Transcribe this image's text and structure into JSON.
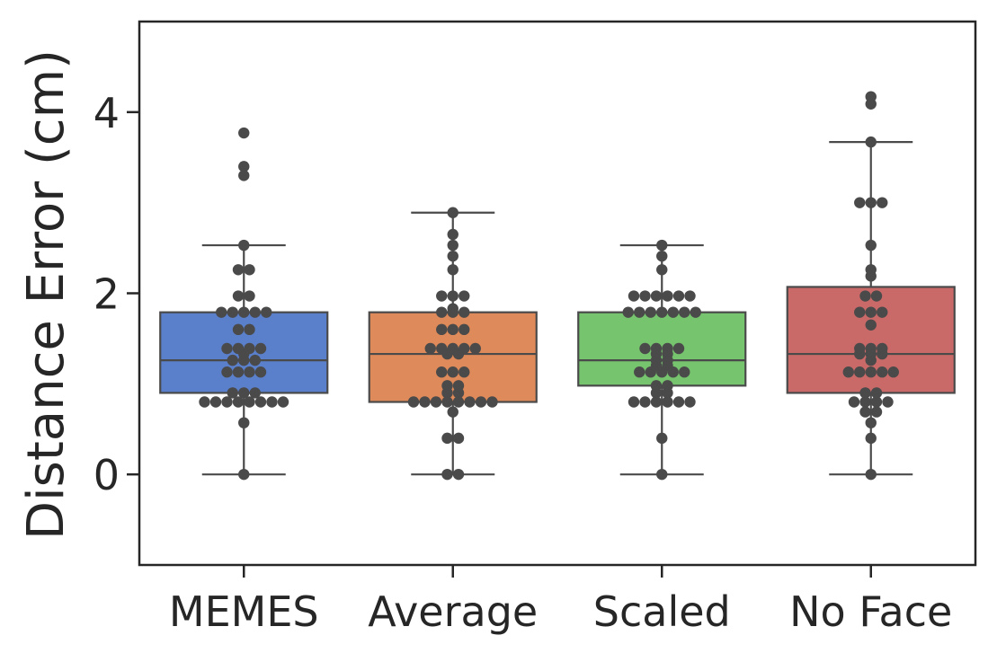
{
  "chart_data": {
    "type": "box",
    "xlabel": "",
    "ylabel": "Distance Error (cm)",
    "ylim": [
      -1,
      5
    ],
    "yticks": [
      0,
      2,
      4
    ],
    "grid": false,
    "categories": [
      "MEMES",
      "Average",
      "Scaled",
      "No Face"
    ],
    "colors": [
      "#5a7fcb",
      "#df8a5a",
      "#77c46e",
      "#c96a69"
    ],
    "point_color": "#4a4a4a",
    "boxes": [
      {
        "name": "MEMES",
        "whisker_low": 0,
        "q1": 0.9,
        "median": 1.26,
        "q3": 1.79,
        "whisker_high": 2.53,
        "points": [
          0,
          0.57,
          0.8,
          0.8,
          0.8,
          0.8,
          0.8,
          0.8,
          0.8,
          0.8,
          0.9,
          0.9,
          0.9,
          1.13,
          1.13,
          1.13,
          1.13,
          1.26,
          1.26,
          1.26,
          1.33,
          1.39,
          1.39,
          1.39,
          1.39,
          1.6,
          1.6,
          1.79,
          1.79,
          1.79,
          1.79,
          1.79,
          1.97,
          1.97,
          2.26,
          2.26,
          2.53,
          3.3,
          3.4,
          3.77
        ]
      },
      {
        "name": "Average",
        "whisker_low": 0,
        "q1": 0.8,
        "median": 1.33,
        "q3": 1.79,
        "whisker_high": 2.89,
        "points": [
          0,
          0,
          0.4,
          0.4,
          0.69,
          0.8,
          0.8,
          0.8,
          0.8,
          0.8,
          0.8,
          0.8,
          0.8,
          0.9,
          0.9,
          0.98,
          0.98,
          1.13,
          1.13,
          1.13,
          1.33,
          1.33,
          1.39,
          1.39,
          1.39,
          1.39,
          1.39,
          1.6,
          1.6,
          1.6,
          1.79,
          1.79,
          1.79,
          1.83,
          1.97,
          1.97,
          1.97,
          2.26,
          2.41,
          2.53,
          2.65,
          2.89
        ]
      },
      {
        "name": "Scaled",
        "whisker_low": 0,
        "q1": 0.98,
        "median": 1.26,
        "q3": 1.79,
        "whisker_high": 2.53,
        "points": [
          0,
          0.4,
          0.8,
          0.8,
          0.8,
          0.8,
          0.8,
          0.8,
          0.9,
          0.9,
          0.98,
          0.98,
          1.13,
          1.13,
          1.13,
          1.13,
          1.13,
          1.2,
          1.2,
          1.26,
          1.26,
          1.33,
          1.33,
          1.39,
          1.39,
          1.39,
          1.39,
          1.79,
          1.79,
          1.79,
          1.79,
          1.79,
          1.79,
          1.79,
          1.97,
          1.97,
          1.97,
          1.97,
          1.97,
          1.97,
          2.26,
          2.41,
          2.53
        ]
      },
      {
        "name": "No Face",
        "whisker_low": 0,
        "q1": 0.9,
        "median": 1.33,
        "q3": 2.07,
        "whisker_high": 3.67,
        "points": [
          0,
          0.4,
          0.57,
          0.69,
          0.69,
          0.8,
          0.8,
          0.8,
          0.8,
          0.9,
          0.9,
          1.13,
          1.13,
          1.13,
          1.13,
          1.13,
          1.26,
          1.33,
          1.33,
          1.33,
          1.39,
          1.39,
          1.39,
          1.65,
          1.79,
          1.79,
          1.79,
          1.97,
          1.97,
          2.19,
          2.26,
          2.53,
          3,
          3,
          3,
          3.67,
          4.09,
          4.17
        ]
      }
    ]
  }
}
